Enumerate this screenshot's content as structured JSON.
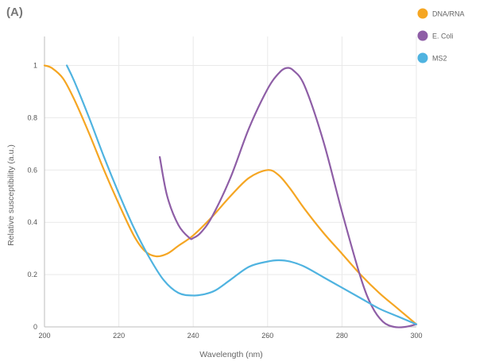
{
  "panel_label": "(A)",
  "chart_data": {
    "type": "line",
    "title": "",
    "xlabel": "Wavelength (nm)",
    "ylabel": "Relative susceptibility (a.u.)",
    "xlim": [
      200,
      300
    ],
    "ylim": [
      0,
      1.05
    ],
    "xticks": [
      200,
      220,
      240,
      260,
      280,
      300
    ],
    "xtick_labels": [
      "200",
      "220",
      "240",
      "260",
      "280",
      "300"
    ],
    "yticks": [
      0,
      0.2,
      0.4,
      0.6,
      0.8,
      1
    ],
    "ytick_labels": [
      "0",
      "0.2",
      "0.4",
      "0.6",
      "0.8",
      "1"
    ],
    "grid": true,
    "legend_position": "top-right",
    "series": [
      {
        "name": "DNA/RNA",
        "color": "#f5a623",
        "x": [
          200,
          202,
          205,
          208,
          212,
          216,
          220,
          224,
          227,
          230,
          233,
          236,
          240,
          245,
          250,
          255,
          260,
          263,
          266,
          270,
          275,
          280,
          285,
          290,
          295,
          300
        ],
        "y": [
          1.0,
          0.99,
          0.95,
          0.87,
          0.74,
          0.6,
          0.47,
          0.35,
          0.29,
          0.27,
          0.28,
          0.31,
          0.35,
          0.42,
          0.5,
          0.57,
          0.6,
          0.58,
          0.53,
          0.45,
          0.36,
          0.28,
          0.2,
          0.13,
          0.07,
          0.01
        ]
      },
      {
        "name": "E. Coli",
        "color": "#8e5ea6",
        "x": [
          231,
          233,
          236,
          239,
          240,
          242,
          245,
          250,
          255,
          260,
          263,
          265,
          267,
          270,
          275,
          280,
          285,
          288,
          291,
          294,
          297,
          300
        ],
        "y": [
          0.65,
          0.5,
          0.39,
          0.34,
          0.34,
          0.36,
          0.42,
          0.57,
          0.76,
          0.91,
          0.97,
          0.99,
          0.98,
          0.92,
          0.71,
          0.44,
          0.19,
          0.08,
          0.02,
          0.0,
          0.0,
          0.01
        ]
      },
      {
        "name": "MS2",
        "color": "#4fb3e0",
        "x": [
          206,
          208,
          212,
          216,
          220,
          224,
          228,
          232,
          236,
          240,
          243,
          246,
          250,
          255,
          260,
          263,
          266,
          270,
          275,
          280,
          285,
          290,
          295,
          300
        ],
        "y": [
          1.0,
          0.94,
          0.8,
          0.65,
          0.51,
          0.38,
          0.27,
          0.18,
          0.13,
          0.12,
          0.125,
          0.14,
          0.18,
          0.23,
          0.25,
          0.255,
          0.25,
          0.23,
          0.19,
          0.15,
          0.11,
          0.07,
          0.04,
          0.01
        ]
      }
    ]
  }
}
